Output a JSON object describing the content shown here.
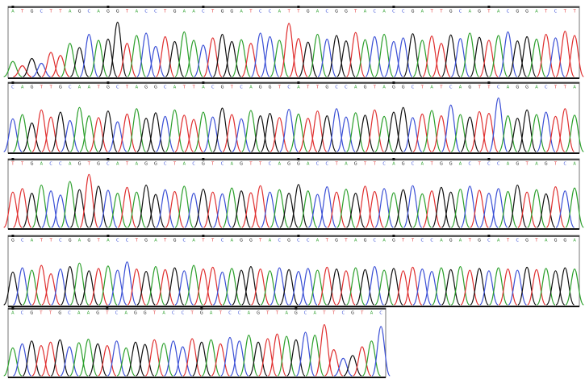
{
  "chart_data": [
    {
      "type": "chromatogram",
      "ylim": [
        0,
        100
      ],
      "base_colors": {
        "A": "#2ca02c",
        "C": "#3b50d6",
        "G": "#111111",
        "T": "#e03030"
      },
      "bases": "ATGCTTAGCAGGTACCTGAACTGGATCCATTGACGGTACACCGATTGCAGTACGGATCTT",
      "values": [
        25,
        18,
        30,
        22,
        40,
        35,
        55,
        48,
        70,
        60,
        62,
        90,
        55,
        68,
        72,
        50,
        66,
        58,
        74,
        60,
        52,
        64,
        70,
        58,
        61,
        55,
        72,
        66,
        60,
        88,
        63,
        57,
        70,
        62,
        68,
        59,
        73,
        61,
        66,
        70,
        58,
        64,
        71,
        60,
        67,
        55,
        69,
        63,
        72,
        65,
        60,
        68,
        74,
        59,
        66,
        62,
        70,
        64,
        75,
        68
      ]
    },
    {
      "type": "chromatogram",
      "ylim": [
        0,
        100
      ],
      "base_colors": {
        "A": "#2ca02c",
        "C": "#3b50d6",
        "G": "#111111",
        "T": "#e03030"
      },
      "bases": "CAGTTGCAATGCTAGGCATTACGTCAGGTCATTGCCAGTAGGCTATCAGTTCAGGACTTA",
      "values": [
        55,
        62,
        48,
        70,
        58,
        66,
        52,
        74,
        60,
        57,
        68,
        50,
        63,
        72,
        56,
        65,
        59,
        70,
        61,
        54,
        66,
        58,
        73,
        62,
        55,
        69,
        60,
        64,
        57,
        71,
        63,
        56,
        68,
        60,
        72,
        58,
        65,
        61,
        70,
        59,
        66,
        74,
        57,
        63,
        69,
        60,
        78,
        62,
        58,
        67,
        64,
        90,
        60,
        56,
        70,
        62,
        66,
        59,
        72,
        61
      ]
    },
    {
      "type": "chromatogram",
      "ylim": [
        0,
        100
      ],
      "base_colors": {
        "A": "#2ca02c",
        "C": "#3b50d6",
        "G": "#111111",
        "T": "#e03030"
      },
      "bases": "TTGACCAGTGCATAGGCTACGTCAGTTCAGGACCTAGTTCAGCATGGACTCCAGTAGTCA",
      "values": [
        60,
        66,
        58,
        72,
        62,
        55,
        78,
        64,
        90,
        70,
        63,
        58,
        68,
        60,
        72,
        56,
        64,
        61,
        70,
        58,
        65,
        60,
        57,
        67,
        62,
        59,
        71,
        60,
        64,
        58,
        73,
        62,
        56,
        69,
        60,
        65,
        58,
        70,
        61,
        66,
        59,
        64,
        71,
        57,
        62,
        68,
        60,
        65,
        70,
        63,
        58,
        66,
        61,
        72,
        60,
        64,
        57,
        69,
        62,
        67
      ]
    },
    {
      "type": "chromatogram",
      "ylim": [
        0,
        100
      ],
      "base_colors": {
        "A": "#2ca02c",
        "C": "#3b50d6",
        "G": "#111111",
        "T": "#e03030"
      },
      "bases": "GCATTCGAGTACCTGATGCATTCAGGTACGCCATGTAGCAGTTCCAGATGCATCGTAGGA",
      "values": [
        55,
        62,
        58,
        66,
        52,
        60,
        64,
        70,
        57,
        61,
        65,
        58,
        72,
        60,
        56,
        64,
        59,
        62,
        57,
        66,
        60,
        63,
        55,
        61,
        58,
        64,
        60,
        57,
        62,
        59,
        56,
        61,
        58,
        63,
        60,
        57,
        62,
        59,
        64,
        58,
        61,
        57,
        63,
        60,
        56,
        62,
        59,
        64,
        58,
        61,
        57,
        62,
        60,
        58,
        63,
        59,
        61,
        57,
        62,
        60
      ]
    },
    {
      "type": "chromatogram",
      "ylim": [
        0,
        100
      ],
      "base_colors": {
        "A": "#2ca02c",
        "C": "#3b50d6",
        "G": "#111111",
        "T": "#e03030"
      },
      "bases": "ACGTTGCAAGTCAGGTACCTGATCCAGTTAGCATTCGTAC",
      "values": [
        48,
        55,
        60,
        52,
        58,
        62,
        50,
        57,
        63,
        55,
        52,
        60,
        48,
        58,
        54,
        62,
        56,
        60,
        50,
        64,
        58,
        62,
        55,
        66,
        60,
        70,
        58,
        64,
        72,
        68,
        62,
        75,
        70,
        88,
        45,
        30,
        35,
        50,
        60,
        85
      ]
    }
  ]
}
